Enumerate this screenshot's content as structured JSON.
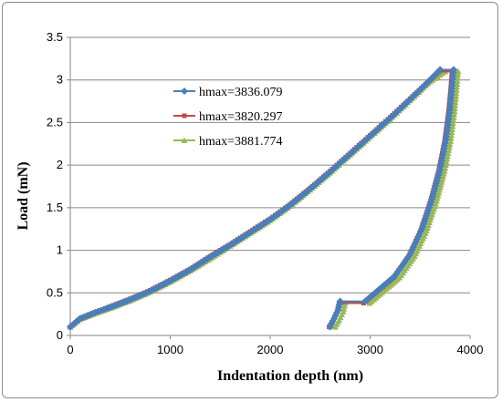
{
  "chart_data": {
    "type": "line",
    "title": "",
    "xlabel": "Indentation depth (nm)",
    "ylabel": "Load (mN)",
    "xlim": [
      0,
      4000
    ],
    "ylim": [
      0,
      3.5
    ],
    "xticks": [
      0,
      1000,
      2000,
      3000,
      4000
    ],
    "yticks": [
      0,
      0.5,
      1,
      1.5,
      2,
      2.5,
      3,
      3.5
    ],
    "grid": "horizontal",
    "legend_position": "upper-left-inside",
    "series": [
      {
        "name": "hmax=3836.079",
        "color": "#4a7ebb",
        "marker": "diamond",
        "loading": [
          [
            0,
            0.1
          ],
          [
            100,
            0.2
          ],
          [
            250,
            0.27
          ],
          [
            400,
            0.33
          ],
          [
            600,
            0.42
          ],
          [
            800,
            0.52
          ],
          [
            1000,
            0.64
          ],
          [
            1200,
            0.77
          ],
          [
            1400,
            0.92
          ],
          [
            1600,
            1.06
          ],
          [
            1800,
            1.21
          ],
          [
            2000,
            1.36
          ],
          [
            2200,
            1.53
          ],
          [
            2400,
            1.72
          ],
          [
            2600,
            1.92
          ],
          [
            2800,
            2.13
          ],
          [
            3000,
            2.34
          ],
          [
            3200,
            2.55
          ],
          [
            3400,
            2.77
          ],
          [
            3600,
            3.0
          ],
          [
            3700,
            3.12
          ]
        ],
        "hold": [
          [
            3700,
            3.12
          ],
          [
            3836,
            3.12
          ]
        ],
        "unloading": [
          [
            3836,
            3.12
          ],
          [
            3820,
            2.9
          ],
          [
            3800,
            2.65
          ],
          [
            3760,
            2.3
          ],
          [
            3700,
            1.95
          ],
          [
            3620,
            1.6
          ],
          [
            3520,
            1.25
          ],
          [
            3400,
            0.95
          ],
          [
            3250,
            0.7
          ],
          [
            3100,
            0.55
          ],
          [
            2950,
            0.4
          ]
        ],
        "end_hold": [
          [
            2950,
            0.4
          ],
          [
            2700,
            0.4
          ]
        ],
        "end_unload": [
          [
            2700,
            0.4
          ],
          [
            2680,
            0.3
          ],
          [
            2640,
            0.2
          ],
          [
            2600,
            0.1
          ]
        ]
      },
      {
        "name": "hmax=3820.297",
        "color": "#be4b48",
        "marker": "square",
        "loading": [
          [
            0,
            0.1
          ],
          [
            100,
            0.2
          ],
          [
            250,
            0.27
          ],
          [
            400,
            0.34
          ],
          [
            600,
            0.43
          ],
          [
            800,
            0.53
          ],
          [
            1000,
            0.65
          ],
          [
            1200,
            0.78
          ],
          [
            1400,
            0.93
          ],
          [
            1600,
            1.07
          ],
          [
            1800,
            1.22
          ],
          [
            2000,
            1.37
          ],
          [
            2200,
            1.54
          ],
          [
            2400,
            1.73
          ],
          [
            2600,
            1.93
          ],
          [
            2800,
            2.14
          ],
          [
            3000,
            2.35
          ],
          [
            3200,
            2.56
          ],
          [
            3400,
            2.78
          ],
          [
            3600,
            3.0
          ],
          [
            3690,
            3.1
          ]
        ],
        "hold": [
          [
            3690,
            3.1
          ],
          [
            3820,
            3.1
          ]
        ],
        "unloading": [
          [
            3820,
            3.1
          ],
          [
            3805,
            2.88
          ],
          [
            3785,
            2.63
          ],
          [
            3745,
            2.28
          ],
          [
            3685,
            1.93
          ],
          [
            3605,
            1.58
          ],
          [
            3505,
            1.23
          ],
          [
            3385,
            0.93
          ],
          [
            3235,
            0.68
          ],
          [
            3085,
            0.53
          ],
          [
            2935,
            0.38
          ]
        ],
        "end_hold": [
          [
            2935,
            0.38
          ],
          [
            2690,
            0.38
          ]
        ],
        "end_unload": [
          [
            2690,
            0.38
          ],
          [
            2670,
            0.28
          ],
          [
            2630,
            0.18
          ],
          [
            2590,
            0.1
          ]
        ]
      },
      {
        "name": "hmax=3881.774",
        "color": "#98b954",
        "marker": "triangle",
        "loading": [
          [
            0,
            0.1
          ],
          [
            100,
            0.19
          ],
          [
            250,
            0.26
          ],
          [
            400,
            0.32
          ],
          [
            600,
            0.41
          ],
          [
            800,
            0.51
          ],
          [
            1000,
            0.63
          ],
          [
            1200,
            0.76
          ],
          [
            1400,
            0.9
          ],
          [
            1600,
            1.05
          ],
          [
            1800,
            1.2
          ],
          [
            2000,
            1.35
          ],
          [
            2200,
            1.52
          ],
          [
            2400,
            1.71
          ],
          [
            2600,
            1.91
          ],
          [
            2800,
            2.12
          ],
          [
            3000,
            2.33
          ],
          [
            3200,
            2.54
          ],
          [
            3400,
            2.76
          ],
          [
            3600,
            2.98
          ],
          [
            3750,
            3.1
          ]
        ],
        "hold": [
          [
            3750,
            3.1
          ],
          [
            3881,
            3.1
          ]
        ],
        "unloading": [
          [
            3881,
            3.1
          ],
          [
            3865,
            2.88
          ],
          [
            3845,
            2.63
          ],
          [
            3805,
            2.28
          ],
          [
            3745,
            1.93
          ],
          [
            3665,
            1.58
          ],
          [
            3565,
            1.23
          ],
          [
            3445,
            0.93
          ],
          [
            3295,
            0.68
          ],
          [
            3145,
            0.53
          ],
          [
            2995,
            0.38
          ]
        ],
        "end_hold": [
          [
            2995,
            0.38
          ],
          [
            2750,
            0.38
          ]
        ],
        "end_unload": [
          [
            2750,
            0.38
          ],
          [
            2730,
            0.28
          ],
          [
            2690,
            0.18
          ],
          [
            2650,
            0.1
          ]
        ]
      }
    ]
  }
}
